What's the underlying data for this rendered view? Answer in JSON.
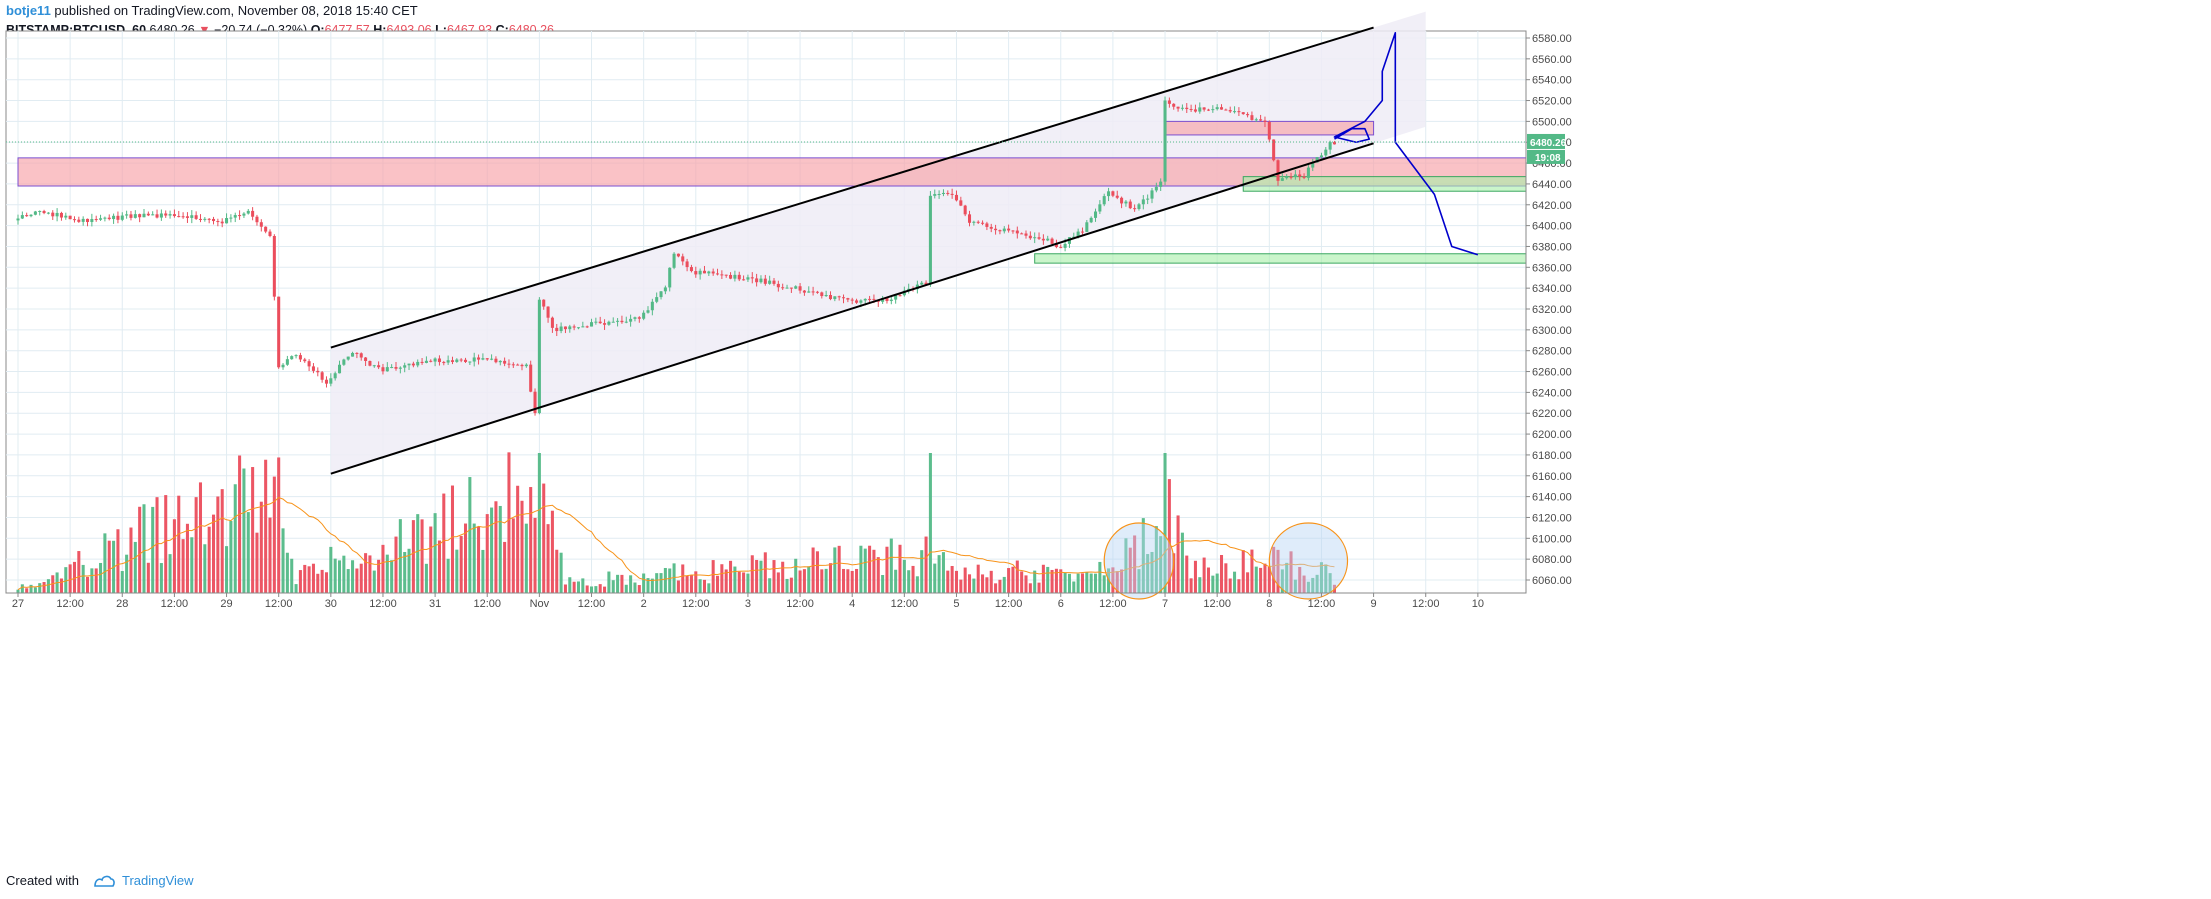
{
  "header": {
    "author": "botje11",
    "published": "published on TradingView.com, November 08, 2018 15:40 CET",
    "symbol": "BITSTAMP:BTCUSD, 60",
    "last": "6480.26",
    "arrow": "▼",
    "change": "−20.74 (−0.32%)",
    "o_label": "O:",
    "o_value": "6477.57",
    "h_label": "H:",
    "h_value": "6493.06",
    "l_label": "L:",
    "l_value": "6467.93",
    "c_label": "C:",
    "c_value": "6480.26"
  },
  "footer": {
    "created_with": "Created with",
    "brand": "TradingView"
  },
  "chart_data": {
    "type": "candlestick",
    "colors": {
      "up": "#53b987",
      "down": "#eb4d5c",
      "channel": "#000000",
      "projection": "#0000cc",
      "ma": "#f7931a",
      "grid": "#e1ecf2",
      "price_badge": "#53b987"
    },
    "price_axis": {
      "min": 6050,
      "max": 6590,
      "ticks": [
        6060,
        6080,
        6100,
        6120,
        6140,
        6160,
        6180,
        6200,
        6220,
        6240,
        6260,
        6280,
        6300,
        6320,
        6340,
        6360,
        6380,
        6400,
        6420,
        6440,
        6460,
        6480,
        6500,
        6520,
        6540,
        6560,
        6580
      ]
    },
    "tick_labels": [
      "6060.00",
      "6080.00",
      "6100.00",
      "6120.00",
      "6140.00",
      "6160.00",
      "6180.00",
      "6200.00",
      "6220.00",
      "6240.00",
      "6260.00",
      "6280.00",
      "6300.00",
      "6320.00",
      "6340.00",
      "6360.00",
      "6380.00",
      "6400.00",
      "6420.00",
      "6440.00",
      "6460.00",
      "6480.00",
      "6500.00",
      "6520.00",
      "6540.00",
      "6560.00",
      "6580.00"
    ],
    "time_axis": {
      "start": "2018-10-27 00:00",
      "end": "2018-11-10 12:00",
      "labels": [
        {
          "t": "2018-10-27 00:00",
          "label": "27"
        },
        {
          "t": "2018-10-27 12:00",
          "label": "12:00"
        },
        {
          "t": "2018-10-28 00:00",
          "label": "28"
        },
        {
          "t": "2018-10-28 12:00",
          "label": "12:00"
        },
        {
          "t": "2018-10-29 00:00",
          "label": "29"
        },
        {
          "t": "2018-10-29 12:00",
          "label": "12:00"
        },
        {
          "t": "2018-10-30 00:00",
          "label": "30"
        },
        {
          "t": "2018-10-30 12:00",
          "label": "12:00"
        },
        {
          "t": "2018-10-31 00:00",
          "label": "31"
        },
        {
          "t": "2018-10-31 12:00",
          "label": "12:00"
        },
        {
          "t": "2018-11-01 00:00",
          "label": "Nov"
        },
        {
          "t": "2018-11-01 12:00",
          "label": "12:00"
        },
        {
          "t": "2018-11-02 00:00",
          "label": "2"
        },
        {
          "t": "2018-11-02 12:00",
          "label": "12:00"
        },
        {
          "t": "2018-11-03 00:00",
          "label": "3"
        },
        {
          "t": "2018-11-03 12:00",
          "label": "12:00"
        },
        {
          "t": "2018-11-04 00:00",
          "label": "4"
        },
        {
          "t": "2018-11-04 12:00",
          "label": "12:00"
        },
        {
          "t": "2018-11-05 00:00",
          "label": "5"
        },
        {
          "t": "2018-11-05 12:00",
          "label": "12:00"
        },
        {
          "t": "2018-11-06 00:00",
          "label": "6"
        },
        {
          "t": "2018-11-06 12:00",
          "label": "12:00"
        },
        {
          "t": "2018-11-07 00:00",
          "label": "7"
        },
        {
          "t": "2018-11-07 12:00",
          "label": "12:00"
        },
        {
          "t": "2018-11-08 00:00",
          "label": "8"
        },
        {
          "t": "2018-11-08 12:00",
          "label": "12:00"
        },
        {
          "t": "2018-11-09 00:00",
          "label": "9"
        },
        {
          "t": "2018-11-09 12:00",
          "label": "12:00"
        },
        {
          "t": "2018-11-10 00:00",
          "label": "10"
        }
      ]
    },
    "price_path": [
      [
        "2018-10-27 00:00",
        6405
      ],
      [
        "2018-10-27 06:00",
        6415
      ],
      [
        "2018-10-27 14:00",
        6405
      ],
      [
        "2018-10-28 00:00",
        6408
      ],
      [
        "2018-10-28 12:00",
        6410
      ],
      [
        "2018-10-29 00:00",
        6404
      ],
      [
        "2018-10-29 06:00",
        6413
      ],
      [
        "2018-10-29 11:00",
        6390
      ],
      [
        "2018-10-29 12:00",
        6330
      ],
      [
        "2018-10-29 13:00",
        6265
      ],
      [
        "2018-10-29 17:00",
        6275
      ],
      [
        "2018-10-30 00:00",
        6250
      ],
      [
        "2018-10-30 06:00",
        6280
      ],
      [
        "2018-10-30 12:00",
        6262
      ],
      [
        "2018-10-31 00:00",
        6270
      ],
      [
        "2018-10-31 12:00",
        6272
      ],
      [
        "2018-10-31 22:00",
        6265
      ],
      [
        "2018-11-01 00:00",
        6220
      ],
      [
        "2018-11-01 01:00",
        6330
      ],
      [
        "2018-11-01 04:00",
        6300
      ],
      [
        "2018-11-01 12:00",
        6305
      ],
      [
        "2018-11-02 00:00",
        6310
      ],
      [
        "2018-11-02 06:00",
        6342
      ],
      [
        "2018-11-02 08:00",
        6375
      ],
      [
        "2018-11-02 12:00",
        6356
      ],
      [
        "2018-11-03 00:00",
        6350
      ],
      [
        "2018-11-03 12:00",
        6340
      ],
      [
        "2018-11-04 00:00",
        6328
      ],
      [
        "2018-11-04 10:00",
        6330
      ],
      [
        "2018-11-04 18:00",
        6345
      ],
      [
        "2018-11-04 19:00",
        6430
      ],
      [
        "2018-11-05 00:00",
        6430
      ],
      [
        "2018-11-05 04:00",
        6405
      ],
      [
        "2018-11-05 12:00",
        6395
      ],
      [
        "2018-11-05 23:00",
        6385
      ],
      [
        "2018-11-06 00:00",
        6378
      ],
      [
        "2018-11-06 06:00",
        6395
      ],
      [
        "2018-11-06 12:00",
        6432
      ],
      [
        "2018-11-06 18:00",
        6415
      ],
      [
        "2018-11-07 00:00",
        6440
      ],
      [
        "2018-11-07 01:00",
        6520
      ],
      [
        "2018-11-07 06:00",
        6510
      ],
      [
        "2018-11-07 12:00",
        6512
      ],
      [
        "2018-11-07 18:00",
        6507
      ],
      [
        "2018-11-08 00:00",
        6498
      ],
      [
        "2018-11-08 03:00",
        6445
      ],
      [
        "2018-11-08 09:00",
        6448
      ],
      [
        "2018-11-08 15:00",
        6480
      ]
    ],
    "volume_path": [
      [
        "2018-10-27 00:00",
        0.05
      ],
      [
        "2018-10-29 12:00",
        1.0
      ],
      [
        "2018-10-29 16:00",
        0.15
      ],
      [
        "2018-11-01 00:00",
        0.95
      ],
      [
        "2018-11-01 06:00",
        0.1
      ],
      [
        "2018-11-04 19:00",
        0.35
      ],
      [
        "2018-11-05 00:00",
        0.2
      ],
      [
        "2018-11-06 12:00",
        0.18
      ],
      [
        "2018-11-07 01:00",
        0.78
      ],
      [
        "2018-11-07 06:00",
        0.2
      ],
      [
        "2018-11-08 00:00",
        0.28
      ],
      [
        "2018-11-08 15:00",
        0.16
      ]
    ],
    "channel": {
      "upper": [
        [
          "2018-10-30 00:00",
          6283
        ],
        [
          "2018-11-09 00:00",
          6590
        ]
      ],
      "lower": [
        [
          "2018-10-30 00:00",
          6162
        ],
        [
          "2018-11-09 00:00",
          6479
        ]
      ],
      "fill_end": "2018-11-09 12:00"
    },
    "zones": [
      {
        "name": "resistance-zone-wide",
        "color": "red",
        "t1": "2018-10-27 00:00",
        "t2": "2018-11-10 12:00",
        "p1": 6438,
        "p2": 6465
      },
      {
        "name": "resistance-zone-small",
        "color": "red",
        "t1": "2018-11-07 00:00",
        "t2": "2018-11-09 00:00",
        "p1": 6487,
        "p2": 6500
      },
      {
        "name": "support-zone-upper",
        "color": "green",
        "t1": "2018-11-07 18:00",
        "t2": "2018-11-10 12:00",
        "p1": 6433,
        "p2": 6447
      },
      {
        "name": "support-zone-lower",
        "color": "green",
        "t1": "2018-11-05 18:00",
        "t2": "2018-11-10 12:00",
        "p1": 6364,
        "p2": 6373
      }
    ],
    "projection": [
      [
        "2018-11-08 15:00",
        6483
      ],
      [
        "2018-11-08 19:00",
        6493
      ],
      [
        "2018-11-08 22:00",
        6493
      ],
      [
        "2018-11-08 23:00",
        6483
      ],
      [
        "2018-11-08 20:00",
        6480
      ],
      [
        "2018-11-08 15:00",
        6485
      ],
      [
        "2018-11-08 22:00",
        6500
      ],
      [
        "2018-11-09 02:00",
        6520
      ],
      [
        "2018-11-09 02:00",
        6548
      ],
      [
        "2018-11-09 05:00",
        6585
      ],
      [
        "2018-11-09 05:00",
        6480
      ],
      [
        "2018-11-09 14:00",
        6430
      ],
      [
        "2018-11-09 18:00",
        6380
      ],
      [
        "2018-11-10 00:00",
        6372
      ]
    ],
    "last_price": {
      "value": 6480.26,
      "label": "6480.26",
      "countdown": "19:08"
    },
    "volume_ellipses": [
      {
        "t1": "2018-11-06 10:00",
        "t2": "2018-11-07 02:00"
      },
      {
        "t1": "2018-11-08 00:00",
        "t2": "2018-11-08 18:00"
      }
    ]
  }
}
